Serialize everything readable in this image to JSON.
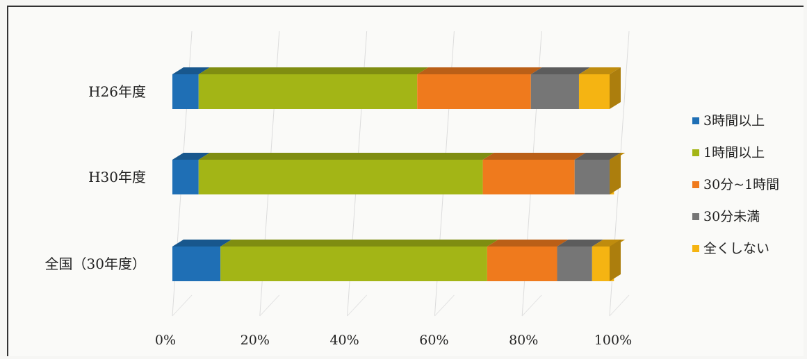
{
  "chart_data": {
    "type": "bar",
    "orientation": "horizontal",
    "stacked": "percent",
    "three_d": true,
    "categories": [
      "H26年度",
      "H30年度",
      "全国（30年度）"
    ],
    "series": [
      {
        "name": "3時間以上",
        "color": "#1f6fb5",
        "values": [
          6,
          6,
          11
        ]
      },
      {
        "name": "1時間以上",
        "color": "#a3b516",
        "values": [
          50,
          65,
          61
        ]
      },
      {
        "name": "30分~1時間",
        "color": "#ef7a1d",
        "values": [
          26,
          21,
          16
        ]
      },
      {
        "name": "30分未満",
        "color": "#767676",
        "values": [
          11,
          8,
          8
        ]
      },
      {
        "name": "全くしない",
        "color": "#f5b412",
        "values": [
          7,
          1,
          5
        ]
      }
    ],
    "x_ticks": [
      "0%",
      "20%",
      "40%",
      "60%",
      "80%",
      "100%"
    ],
    "xlim": [
      0,
      100
    ],
    "grid": true,
    "legend_position": "right"
  }
}
